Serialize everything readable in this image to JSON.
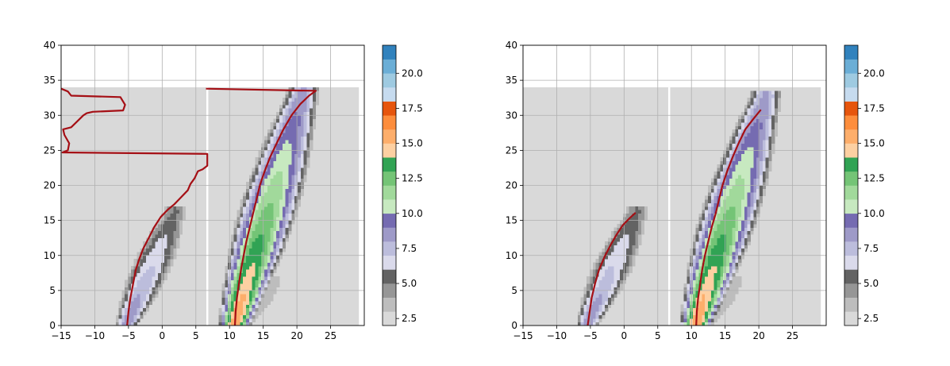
{
  "colors": {
    "background_field": "#d9d9d9",
    "trajectory": "#a50f15",
    "grid": "#b0b0b0"
  },
  "colorbar": {
    "tick_labels": [
      "2.5",
      "5.0",
      "7.5",
      "10.0",
      "12.5",
      "15.0",
      "17.5",
      "20.0"
    ],
    "ticks": [
      2.5,
      5.0,
      7.5,
      10.0,
      12.5,
      15.0,
      17.5,
      20.0
    ],
    "range": [
      2,
      22
    ],
    "levels": [
      {
        "from": 2,
        "to": 3,
        "color": "#d9d9d9"
      },
      {
        "from": 3,
        "to": 4,
        "color": "#bdbdbd"
      },
      {
        "from": 4,
        "to": 5,
        "color": "#969696"
      },
      {
        "from": 5,
        "to": 6,
        "color": "#636363"
      },
      {
        "from": 6,
        "to": 7,
        "color": "#dadaeb"
      },
      {
        "from": 7,
        "to": 8,
        "color": "#bcbddc"
      },
      {
        "from": 8,
        "to": 9,
        "color": "#9e9ac8"
      },
      {
        "from": 9,
        "to": 10,
        "color": "#756bb1"
      },
      {
        "from": 10,
        "to": 11,
        "color": "#c7e9c0"
      },
      {
        "from": 11,
        "to": 12,
        "color": "#a1d99b"
      },
      {
        "from": 12,
        "to": 13,
        "color": "#74c476"
      },
      {
        "from": 13,
        "to": 14,
        "color": "#31a354"
      },
      {
        "from": 14,
        "to": 15,
        "color": "#fdd0a2"
      },
      {
        "from": 15,
        "to": 16,
        "color": "#fdae6b"
      },
      {
        "from": 16,
        "to": 17,
        "color": "#fd8d3c"
      },
      {
        "from": 17,
        "to": 18,
        "color": "#e6550d"
      },
      {
        "from": 18,
        "to": 19,
        "color": "#c6dbef"
      },
      {
        "from": 19,
        "to": 20,
        "color": "#9ecae1"
      },
      {
        "from": 20,
        "to": 21,
        "color": "#6baed6"
      },
      {
        "from": 21,
        "to": 22,
        "color": "#3182bd"
      }
    ]
  },
  "chart_data": [
    {
      "type": "heatmap",
      "title": "",
      "xlabel": "",
      "ylabel": "",
      "xlim": [
        -15,
        30
      ],
      "ylim": [
        0,
        40
      ],
      "xticks": [
        -15,
        -10,
        -5,
        0,
        5,
        10,
        15,
        20,
        25
      ],
      "xtick_labels": [
        "−15",
        "−10",
        "−5",
        "0",
        "5",
        "10",
        "15",
        "20",
        "25"
      ],
      "yticks": [
        0,
        5,
        10,
        15,
        20,
        25,
        30,
        35,
        40
      ],
      "ytick_labels": [
        "0",
        "5",
        "10",
        "15",
        "20",
        "25",
        "30",
        "35",
        "40"
      ],
      "grid": true,
      "field_top": 34,
      "divider_x": 6.7,
      "series": [
        {
          "x": [
            -5.2,
            -5.0,
            -4.7,
            -4.3,
            -3.9,
            -3.4,
            -2.8,
            -2.0,
            -1.2,
            -0.2,
            0.8,
            1.8,
            2.8,
            3.8,
            4.2,
            4.8,
            5.3,
            6.0,
            6.7,
            6.7,
            -14.8,
            -14.0,
            -13.8,
            -14.5,
            -14.7,
            -13.5,
            -11.7,
            -11.2,
            -10.3,
            -5.8,
            -5.5,
            -6.2,
            -13.5,
            -14.0,
            -15.0
          ],
          "y": [
            0.0,
            2.0,
            4.0,
            6.0,
            8.0,
            9.5,
            11.0,
            12.5,
            14.0,
            15.5,
            16.5,
            17.3,
            18.3,
            19.3,
            20.2,
            21.0,
            22.0,
            22.3,
            22.8,
            24.5,
            24.7,
            25.0,
            26.0,
            27.2,
            28.0,
            28.3,
            30.0,
            30.3,
            30.5,
            30.7,
            31.5,
            32.6,
            32.8,
            33.4,
            33.8
          ]
        },
        {
          "x": [
            10.8,
            10.9,
            11.1,
            11.4,
            11.7,
            12.1,
            12.5,
            13.0,
            13.5,
            14.0,
            14.5,
            15.2,
            16.0,
            17.0,
            18.0,
            19.2,
            20.5,
            21.8,
            22.8,
            6.5
          ],
          "y": [
            0.0,
            2.0,
            4.0,
            6.0,
            8.0,
            10.0,
            12.0,
            14.0,
            16.0,
            18.0,
            20.0,
            22.0,
            24.0,
            26.0,
            28.0,
            30.0,
            31.6,
            32.8,
            33.5,
            33.8
          ]
        }
      ],
      "plumes": [
        {
          "base": [
            -5.2,
            0
          ],
          "top": [
            2.0,
            16.2
          ],
          "width": 3.0,
          "peak": 9
        },
        {
          "base": [
            10.8,
            0
          ],
          "top": [
            21.0,
            33.5
          ],
          "width": 4.2,
          "peak": 16
        },
        {
          "base": [
            12.5,
            0
          ],
          "top": [
            16.5,
            6.0
          ],
          "width": 2.0,
          "peak": 4
        },
        {
          "base": [
            1.5,
            5.0
          ],
          "top": [
            7.0,
            10.5
          ],
          "width": 2.0,
          "peak": 3
        },
        {
          "base": [
            19.5,
            12.0
          ],
          "top": [
            27.0,
            27.0
          ],
          "width": 2.2,
          "peak": 3
        },
        {
          "base": [
            20.0,
            32.0
          ],
          "top": [
            29.0,
            34.0
          ],
          "width": 3.5,
          "peak": 3
        }
      ]
    },
    {
      "type": "heatmap",
      "title": "",
      "xlabel": "",
      "ylabel": "",
      "xlim": [
        -15,
        30
      ],
      "ylim": [
        0,
        40
      ],
      "xticks": [
        -15,
        -10,
        -5,
        0,
        5,
        10,
        15,
        20,
        25
      ],
      "xtick_labels": [
        "−15",
        "−10",
        "−5",
        "0",
        "5",
        "10",
        "15",
        "20",
        "25"
      ],
      "yticks": [
        0,
        5,
        10,
        15,
        20,
        25,
        30,
        35,
        40
      ],
      "ytick_labels": [
        "0",
        "5",
        "10",
        "15",
        "20",
        "25",
        "30",
        "35",
        "40"
      ],
      "grid": true,
      "field_top": 34,
      "divider_x": 6.7,
      "series": [
        {
          "x": [
            -5.4,
            -5.1,
            -4.8,
            -4.3,
            -3.7,
            -2.9,
            -2.0,
            -1.1,
            -0.2,
            0.8,
            1.7
          ],
          "y": [
            0.0,
            2.0,
            4.0,
            6.0,
            8.0,
            9.8,
            11.5,
            13.0,
            14.3,
            15.3,
            16.1
          ]
        },
        {
          "x": [
            10.7,
            10.8,
            11.0,
            11.3,
            11.6,
            12.0,
            12.5,
            13.0,
            13.6,
            14.1,
            14.6,
            15.3,
            16.1,
            17.0,
            18.0,
            19.2,
            20.3
          ],
          "y": [
            0.0,
            2.0,
            4.0,
            6.0,
            8.0,
            10.0,
            12.0,
            14.0,
            16.0,
            18.0,
            20.0,
            22.0,
            24.0,
            26.0,
            28.0,
            29.5,
            30.8
          ]
        }
      ],
      "plumes": [
        {
          "base": [
            -5.4,
            0
          ],
          "top": [
            2.0,
            16.2
          ],
          "width": 3.0,
          "peak": 9
        },
        {
          "base": [
            10.7,
            0
          ],
          "top": [
            21.0,
            32.5
          ],
          "width": 4.2,
          "peak": 16
        },
        {
          "base": [
            12.5,
            0
          ],
          "top": [
            16.5,
            6.0
          ],
          "width": 2.0,
          "peak": 4
        },
        {
          "base": [
            1.5,
            5.0
          ],
          "top": [
            7.0,
            10.5
          ],
          "width": 2.0,
          "peak": 3
        },
        {
          "base": [
            19.5,
            12.0
          ],
          "top": [
            27.0,
            27.0
          ],
          "width": 2.2,
          "peak": 3
        },
        {
          "base": [
            20.0,
            32.0
          ],
          "top": [
            29.0,
            34.0
          ],
          "width": 3.5,
          "peak": 3
        }
      ]
    }
  ]
}
